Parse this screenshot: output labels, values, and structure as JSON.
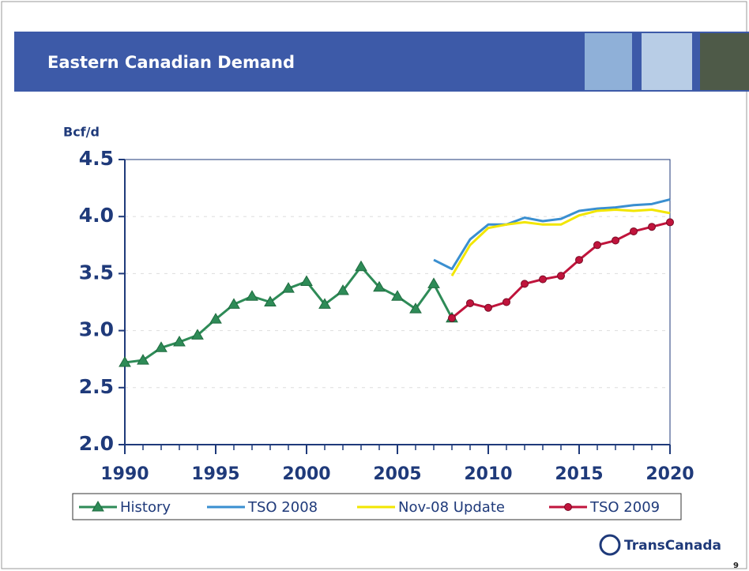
{
  "header": {
    "title": "Eastern Canadian Demand"
  },
  "chart_data": {
    "type": "line",
    "y_label": "Bcf/d",
    "x": [
      1990,
      1991,
      1992,
      1993,
      1994,
      1995,
      1996,
      1997,
      1998,
      1999,
      2000,
      2001,
      2002,
      2003,
      2004,
      2005,
      2006,
      2007,
      2008,
      2009,
      2010,
      2011,
      2012,
      2013,
      2014,
      2015,
      2016,
      2017,
      2018,
      2019,
      2020
    ],
    "xlim": [
      1990,
      2020
    ],
    "xticks": [
      1990,
      1995,
      2000,
      2005,
      2010,
      2015,
      2020
    ],
    "ylim": [
      2.0,
      4.5
    ],
    "yticks": [
      {
        "value": 2.0,
        "label": "2.0"
      },
      {
        "value": 2.5,
        "label": "2.5"
      },
      {
        "value": 3.0,
        "label": "3.0"
      },
      {
        "value": 3.5,
        "label": "3.5"
      },
      {
        "value": 4.0,
        "label": "4.0"
      },
      {
        "value": 4.5,
        "label": "4.5"
      }
    ],
    "grid": true,
    "series": [
      {
        "name": "History",
        "color": "#2e8b57",
        "marker": "triangle",
        "values": [
          2.72,
          2.74,
          2.85,
          2.9,
          2.96,
          3.1,
          3.23,
          3.3,
          3.25,
          3.37,
          3.43,
          3.23,
          3.35,
          3.56,
          3.38,
          3.3,
          3.19,
          3.41,
          3.11,
          null,
          null,
          null,
          null,
          null,
          null,
          null,
          null,
          null,
          null,
          null,
          null
        ]
      },
      {
        "name": "TSO 2008",
        "color": "#3a8fd0",
        "marker": null,
        "values": [
          null,
          null,
          null,
          null,
          null,
          null,
          null,
          null,
          null,
          null,
          null,
          null,
          null,
          null,
          null,
          null,
          null,
          3.62,
          3.54,
          3.8,
          3.93,
          3.93,
          3.99,
          3.96,
          3.98,
          4.05,
          4.07,
          4.08,
          4.1,
          4.11,
          4.15
        ]
      },
      {
        "name": "Nov-08 Update",
        "color": "#f2e600",
        "marker": null,
        "values": [
          null,
          null,
          null,
          null,
          null,
          null,
          null,
          null,
          null,
          null,
          null,
          null,
          null,
          null,
          null,
          null,
          null,
          null,
          3.48,
          3.75,
          3.9,
          3.93,
          3.95,
          3.93,
          3.93,
          4.01,
          4.05,
          4.06,
          4.05,
          4.06,
          4.03
        ]
      },
      {
        "name": "TSO 2009",
        "color": "#c0143c",
        "marker": "circle",
        "values": [
          null,
          null,
          null,
          null,
          null,
          null,
          null,
          null,
          null,
          null,
          null,
          null,
          null,
          null,
          null,
          null,
          null,
          null,
          3.11,
          3.24,
          3.2,
          3.25,
          3.41,
          3.45,
          3.48,
          3.62,
          3.75,
          3.79,
          3.87,
          3.91,
          3.95
        ]
      }
    ]
  },
  "footer": {
    "logo": "TransCanada",
    "page": "9"
  }
}
